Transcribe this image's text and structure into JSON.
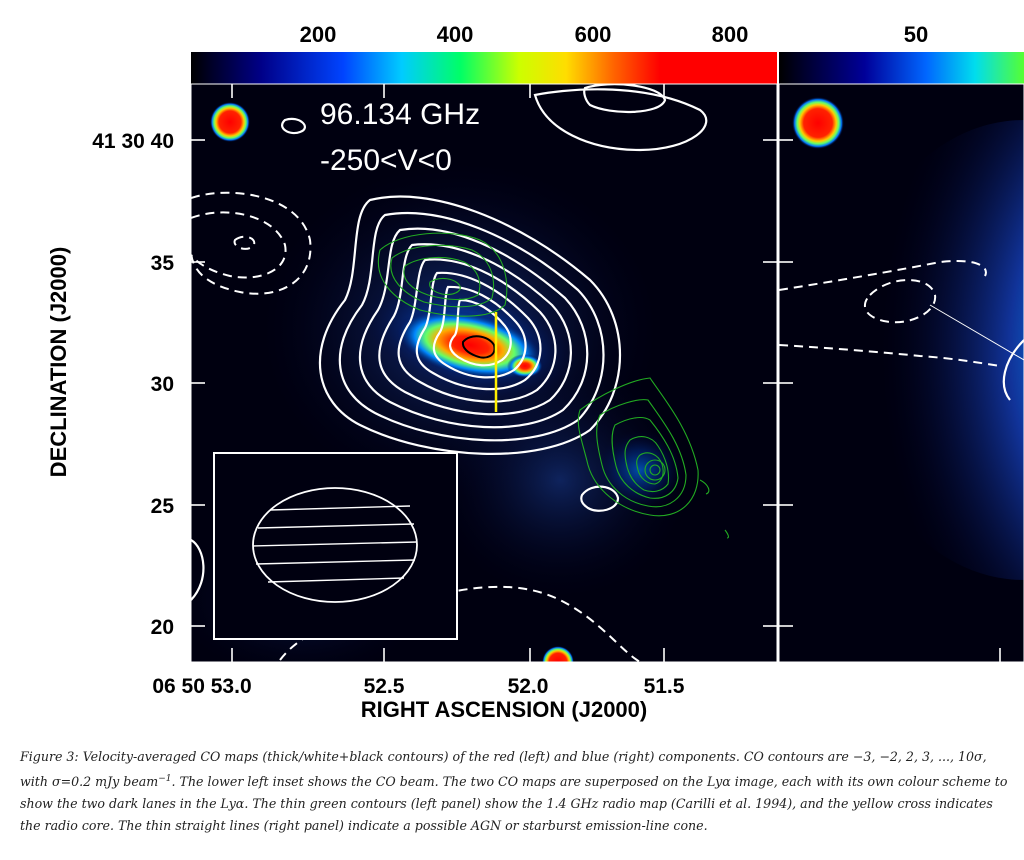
{
  "figure": {
    "colorbar_left": {
      "labels": [
        "200",
        "400",
        "600",
        "800"
      ]
    },
    "colorbar_right": {
      "labels": [
        "50"
      ]
    },
    "panel_text": {
      "frequency": "96.134 GHz",
      "velocity": "-250<V<0"
    },
    "y_axis": {
      "title": "DECLINATION (J2000)",
      "ticks": [
        "41 30 40",
        "35",
        "30",
        "25",
        "20"
      ]
    },
    "x_axis": {
      "title": "RIGHT ASCENSION (J2000)",
      "ticks": [
        "06 50 53.0",
        "52.5",
        "52.0",
        "51.5"
      ]
    },
    "colors": {
      "background": "#000010",
      "contour": "#ffffff",
      "radio_contour": "#22aa22",
      "radio_core": "#ffee00"
    }
  },
  "caption": {
    "label": "Figure 3:",
    "part1": "Velocity-averaged CO maps (thick/white+black contours) of the red (left) and blue (right) components. CO contours are −3, −2, 2, 3, ..., 10σ, with σ=0.2 mJy beam",
    "sup": "−1",
    "part2": ". The lower left inset shows the CO beam. The two CO maps are superposed on the Lyα image, each with its own colour scheme to show the two dark lanes in the Lyα. The thin green contours",
    "note1": "(left panel)",
    "part3": "show the 1.4 GHz radio map (Carilli et al. 1994), and the yellow cross indicates the radio core. The thin straight lines",
    "note2": "(right panel)",
    "part4": "indicate a possible AGN or starburst emission-line cone."
  }
}
